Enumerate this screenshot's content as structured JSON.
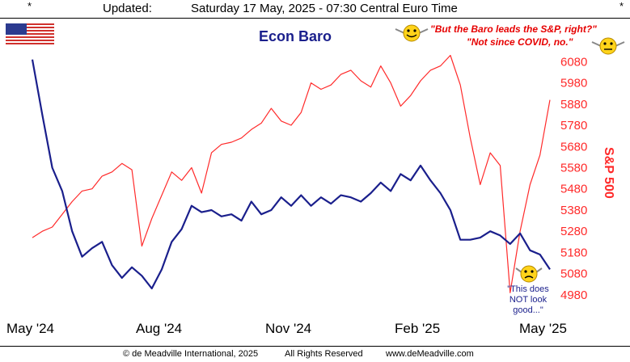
{
  "header": {
    "star_left": "*",
    "star_right": "*",
    "updated_label": "Updated:",
    "date_text": "Saturday 17 May, 2025 - 07:30 Central Euro Time"
  },
  "footer": {
    "copyright": "© de Meadville International, 2025",
    "rights": "All Rights Reserved",
    "website": "www.deMeadville.com"
  },
  "annotations": {
    "quote_line1": "\"But the Baro leads the S&P, right?\"",
    "quote_line2": "\"Not since COVID, no.\"",
    "baro_note_line1": "\"This does",
    "baro_note_line2": "NOT look",
    "baro_note_line3": "good...\""
  },
  "colors": {
    "baro": "#1a1f8c",
    "spx": "#ff2a2a",
    "axis_text": "#ff2a2a",
    "text": "#000000"
  },
  "icons": [
    "us-flag-icon",
    "smiley-face-icon"
  ],
  "chart_data": {
    "type": "line",
    "title": "Econ Baro",
    "ylabel_right": "S&P 500",
    "x_tick_labels": [
      "May '24",
      "Aug '24",
      "Nov '24",
      "Feb '25",
      "May '25"
    ],
    "y_right_ticks": [
      4980,
      5080,
      5180,
      5280,
      5380,
      5480,
      5580,
      5680,
      5780,
      5880,
      5980,
      6080
    ],
    "y_right_range": [
      4930,
      6150
    ],
    "x_index_range": [
      0,
      52
    ],
    "series": [
      {
        "name": "Econ Baro",
        "color": "#1a1f8c",
        "y_values_on_spx_scale": [
          6090,
          5830,
          5580,
          5470,
          5280,
          5160,
          5200,
          5230,
          5120,
          5060,
          5110,
          5070,
          5010,
          5100,
          5230,
          5290,
          5400,
          5370,
          5380,
          5350,
          5360,
          5330,
          5420,
          5360,
          5380,
          5440,
          5400,
          5450,
          5400,
          5440,
          5410,
          5450,
          5440,
          5420,
          5460,
          5510,
          5470,
          5550,
          5520,
          5590,
          5520,
          5460,
          5380,
          5240,
          5240,
          5250,
          5280,
          5260,
          5220,
          5270,
          5190,
          5170,
          5100
        ]
      },
      {
        "name": "S&P 500",
        "color": "#ff2a2a",
        "values": [
          5250,
          5280,
          5300,
          5360,
          5420,
          5470,
          5480,
          5540,
          5560,
          5600,
          5570,
          5210,
          5340,
          5450,
          5560,
          5520,
          5580,
          5460,
          5650,
          5690,
          5700,
          5720,
          5760,
          5790,
          5860,
          5800,
          5780,
          5840,
          5980,
          5950,
          5970,
          6020,
          6040,
          5990,
          5960,
          6060,
          5980,
          5870,
          5920,
          5990,
          6040,
          6060,
          6110,
          5970,
          5720,
          5500,
          5650,
          5590,
          4990,
          5280,
          5500,
          5640,
          5900
        ]
      }
    ],
    "grid": false,
    "legend": "none"
  }
}
